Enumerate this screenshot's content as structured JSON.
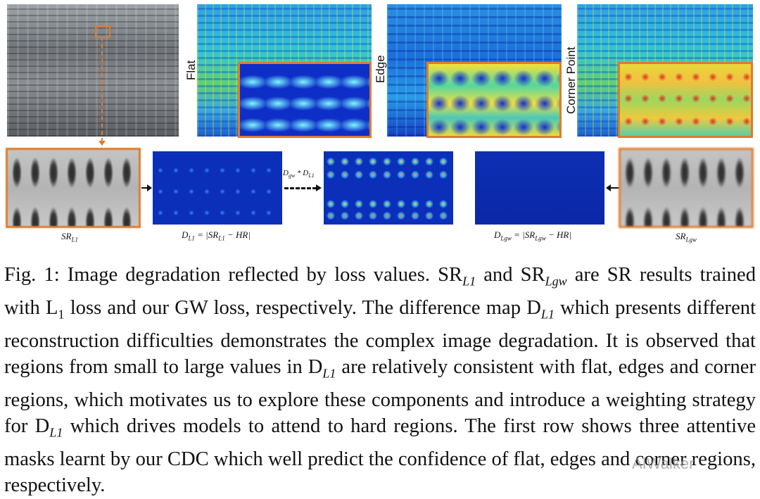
{
  "figure": {
    "mask_labels": {
      "flat": "Flat",
      "edge": "Edge",
      "corner": "Corner Point"
    },
    "bottom_labels": {
      "sr_l1": "SR",
      "sr_l1_sub": "L1",
      "d_l1": "D",
      "d_l1_sub": "L1",
      "d_l1_eq": "= |SR",
      "d_l1_eq_sub": "L1",
      "d_l1_eq_tail": "− HR|",
      "d_lgw": "D",
      "d_lgw_sub": "Lgw",
      "d_lgw_eq": "= |SR",
      "d_lgw_eq_sub": "Lgw",
      "d_lgw_eq_tail": "− HR|",
      "sr_lgw": "SR",
      "sr_lgw_sub": "Lgw"
    },
    "arrow_label": {
      "a": "D",
      "a_sub": "gw",
      "op": " * ",
      "b": "D",
      "b_sub": "L1"
    },
    "colors": {
      "frame": "#e07b2c",
      "arrow": "#111111"
    }
  },
  "caption": {
    "lines": [
      "Fig. 1: Image degradation reflected by loss values. SR",
      "L1",
      " and SR",
      "Lgw",
      " are SR results trained with L",
      "1",
      " loss and our GW loss, respectively. The difference map D",
      "L1",
      " which presents different reconstruction difficulties demonstrates the complex image degradation. It is observed that regions from small to large values in D",
      "L1",
      " are relatively consistent with flat, edges and corner regions, which motivates us to explore these components and introduce a weighting strategy for D",
      "L1",
      " which drives models to attend to hard regions. The first row shows three attentive masks learnt by our CDC which well predict the confidence of flat, edges and corner regions, respectively."
    ]
  },
  "watermark": "AIWalker"
}
